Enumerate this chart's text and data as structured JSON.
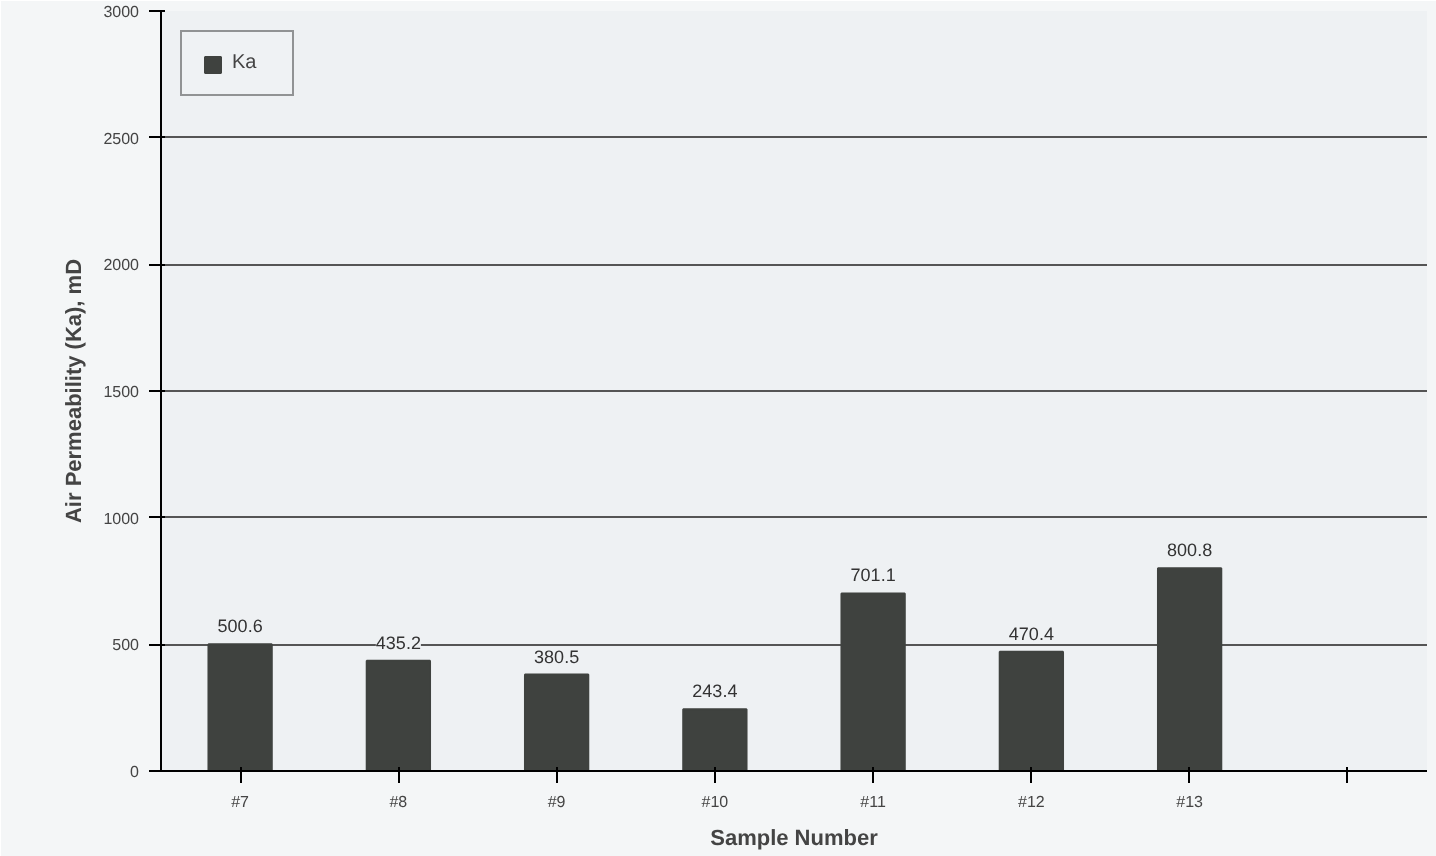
{
  "chart_data": {
    "type": "bar",
    "xlabel": "Sample Number",
    "ylabel": "Air Permeability (Ka), mD",
    "categories": [
      "#7",
      "#8",
      "#9",
      "#10",
      "#11",
      "#12",
      "#13",
      null
    ],
    "series": [
      {
        "name": "Ka",
        "color": "#3f423f",
        "values": [
          500.6,
          435.2,
          380.5,
          243.4,
          701.1,
          470.4,
          800.8,
          null
        ]
      }
    ],
    "ylim": [
      0,
      3000
    ],
    "yticks": [
      0,
      500,
      1000,
      1500,
      2000,
      2500,
      3000
    ],
    "grid": "y",
    "legend": "top left",
    "data_labels": true
  }
}
